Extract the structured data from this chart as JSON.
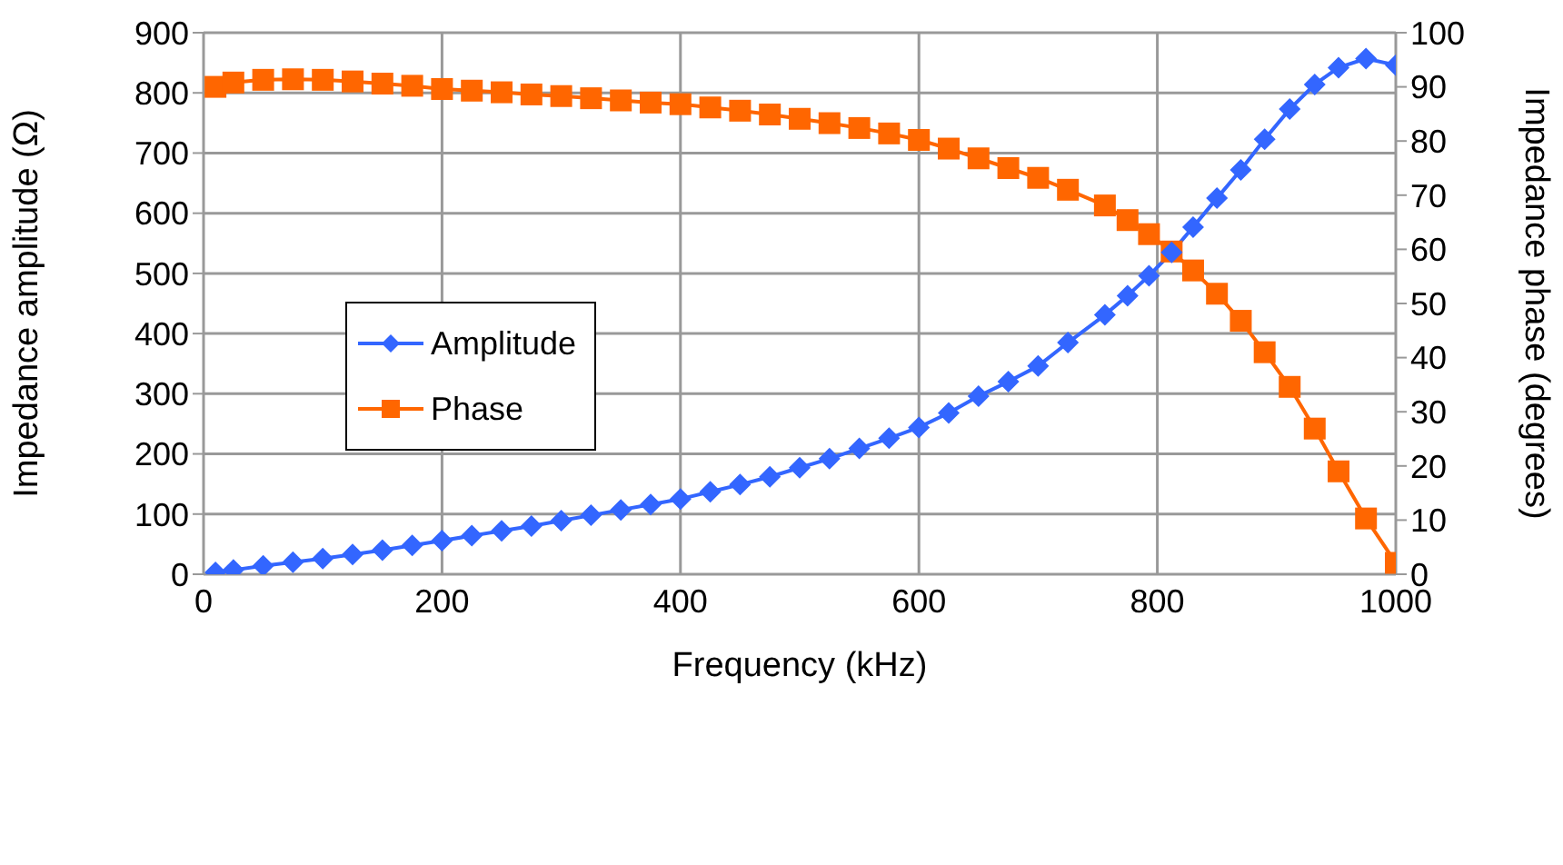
{
  "chart_data": {
    "type": "line",
    "xlabel": "Frequency (kHz)",
    "ylabel": "Impedance amplitude (Ω)",
    "y2label": "Impedance phase (degrees)",
    "x": [
      10,
      25,
      50,
      75,
      100,
      125,
      150,
      175,
      200,
      225,
      250,
      275,
      300,
      325,
      350,
      375,
      400,
      425,
      450,
      475,
      500,
      525,
      550,
      575,
      600,
      625,
      650,
      675,
      700,
      725,
      756,
      775,
      793,
      812,
      830,
      850,
      870,
      890,
      911,
      932,
      952,
      975,
      1000
    ],
    "series": [
      {
        "name": "Amplitude",
        "color": "#3366ff",
        "marker": "diamond",
        "values": [
          3,
          7,
          14,
          20,
          26,
          33,
          40,
          48,
          56,
          64,
          72,
          80,
          89,
          98,
          107,
          116,
          125,
          137,
          149,
          162,
          177,
          192,
          209,
          226,
          244,
          268,
          296,
          320,
          346,
          385,
          431,
          463,
          496,
          535,
          577,
          625,
          672,
          723,
          773,
          814,
          842,
          857,
          846
        ]
      },
      {
        "name": "Phase",
        "color": "#ff6600",
        "marker": "square",
        "axis": "y2",
        "values": [
          90,
          90.8,
          91.3,
          91.4,
          91.3,
          91,
          90.6,
          90.2,
          89.6,
          89.3,
          89,
          88.6,
          88.3,
          87.9,
          87.5,
          87.1,
          86.8,
          86.2,
          85.6,
          84.9,
          84.1,
          83.3,
          82.4,
          81.4,
          80.2,
          78.6,
          76.8,
          75,
          73.2,
          71,
          68.1,
          65.4,
          62.8,
          59.6,
          56.1,
          51.8,
          46.8,
          41,
          34.6,
          26.9,
          19,
          10.3,
          2.1
        ]
      }
    ],
    "xlim": [
      0,
      1000
    ],
    "xticks": [
      0,
      200,
      400,
      600,
      800,
      1000
    ],
    "ylim": [
      0,
      900
    ],
    "yticks": [
      0,
      100,
      200,
      300,
      400,
      500,
      600,
      700,
      800,
      900
    ],
    "y2lim": [
      0,
      100
    ],
    "y2ticks": [
      0,
      10,
      20,
      30,
      40,
      50,
      60,
      70,
      80,
      90,
      100
    ],
    "grid": true,
    "legend": "left"
  }
}
